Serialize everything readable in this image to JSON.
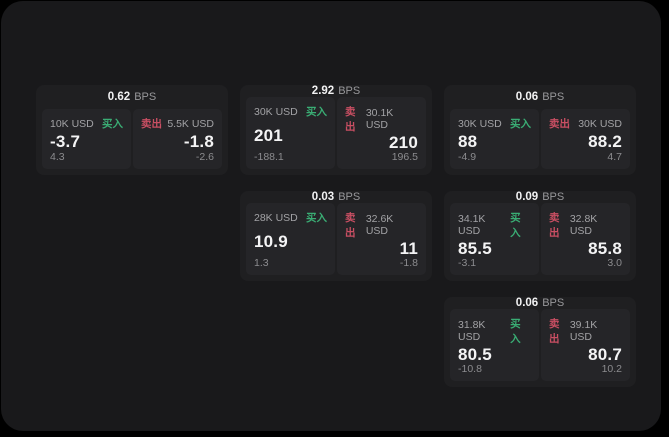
{
  "colors": {
    "buy_accent": "#3aad74",
    "sell_accent": "#c94f63",
    "window_bg": "#19191b",
    "card_bg": "#1f1f21",
    "panel_bg": "#252528"
  },
  "labels": {
    "bps_unit": "BPS",
    "buy": "买入",
    "sell": "卖出"
  },
  "cards": [
    {
      "bps_value": "0.62",
      "bps_unit": "BPS",
      "buy": {
        "size": "10K USD",
        "side_label": "买入",
        "main": "-3.7",
        "sub": "4.3"
      },
      "sell": {
        "side_label": "卖出",
        "size": "5.5K USD",
        "main": "-1.8",
        "sub": "-2.6"
      }
    },
    {
      "bps_value": "2.92",
      "bps_unit": "BPS",
      "buy": {
        "size": "30K USD",
        "side_label": "买入",
        "main": "201",
        "sub": "-188.1"
      },
      "sell": {
        "side_label": "卖出",
        "size": "30.1K USD",
        "main": "210",
        "sub": "196.5"
      }
    },
    {
      "bps_value": "0.06",
      "bps_unit": "BPS",
      "buy": {
        "size": "30K USD",
        "side_label": "买入",
        "main": "88",
        "sub": "-4.9"
      },
      "sell": {
        "side_label": "卖出",
        "size": "30K USD",
        "main": "88.2",
        "sub": "4.7"
      }
    },
    {
      "bps_value": "0.03",
      "bps_unit": "BPS",
      "buy": {
        "size": "28K USD",
        "side_label": "买入",
        "main": "10.9",
        "sub": "1.3"
      },
      "sell": {
        "side_label": "卖出",
        "size": "32.6K USD",
        "main": "11",
        "sub": "-1.8"
      }
    },
    {
      "bps_value": "0.09",
      "bps_unit": "BPS",
      "buy": {
        "size": "34.1K USD",
        "side_label": "买入",
        "main": "85.5",
        "sub": "-3.1"
      },
      "sell": {
        "side_label": "卖出",
        "size": "32.8K USD",
        "main": "85.8",
        "sub": "3.0"
      }
    },
    {
      "bps_value": "0.06",
      "bps_unit": "BPS",
      "buy": {
        "size": "31.8K USD",
        "side_label": "买入",
        "main": "80.5",
        "sub": "-10.8"
      },
      "sell": {
        "side_label": "卖出",
        "size": "39.1K USD",
        "main": "80.7",
        "sub": "10.2"
      }
    }
  ]
}
